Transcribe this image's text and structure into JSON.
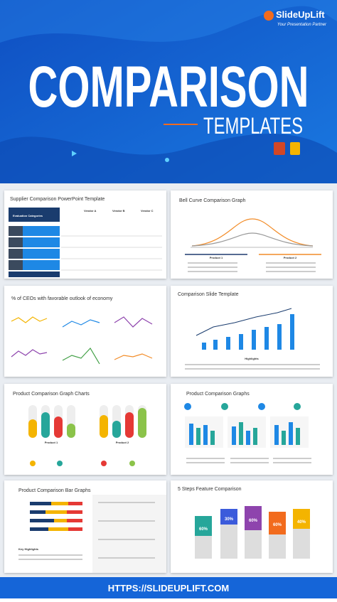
{
  "header": {
    "brand": "SlideUpLift",
    "tagline": "Your Presentation Partner",
    "title": "COMPARISON",
    "subtitle": "TEMPLATES"
  },
  "slides": [
    {
      "title": "Supplier Comparison PowerPoint Template",
      "labels": [
        "Evaluation Categories",
        "Vendor A",
        "Vendor B",
        "Vendor C"
      ]
    },
    {
      "title": "Bell Curve Comparison Graph",
      "labels": [
        "Product 1",
        "Product 2"
      ]
    },
    {
      "title": "% of CEOs with favorable outlook of economy",
      "labels": []
    },
    {
      "title": "Comparison Slide Template",
      "labels": [
        "Highlights"
      ]
    },
    {
      "title": "Product Comparison Graph Charts",
      "labels": [
        "Product 1",
        "Product 2"
      ]
    },
    {
      "title": "Product Comparison Graphs",
      "labels": []
    },
    {
      "title": "Product Comparison Bar Graphs",
      "labels": [
        "Key Highlights"
      ]
    },
    {
      "title": "5 Steps Feature Comparison",
      "labels": [
        "60%",
        "30%",
        "60%",
        "60%",
        "40%"
      ]
    }
  ],
  "footer": {
    "url": "HTTPS://SLIDEUPLIFT.COM"
  }
}
